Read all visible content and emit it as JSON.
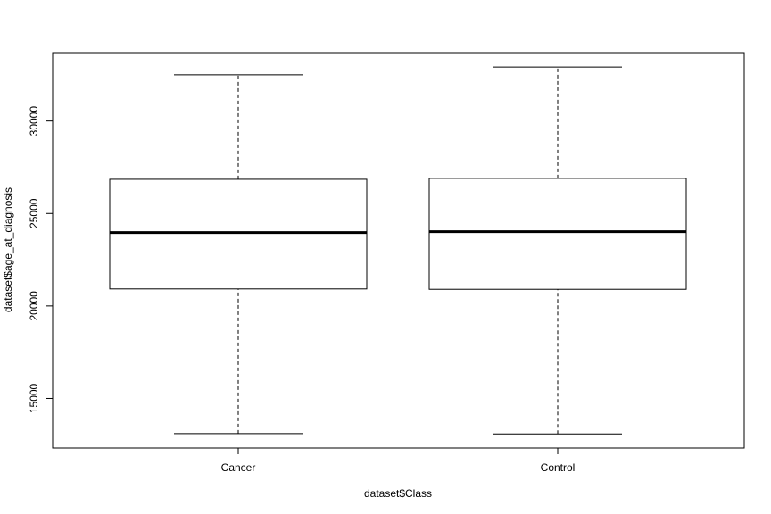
{
  "chart_data": {
    "type": "box",
    "title": "",
    "xlabel": "dataset$Class",
    "ylabel": "dataset$age_at_diagnosis",
    "categories": [
      "Cancer",
      "Control"
    ],
    "boxes": [
      {
        "category": "Cancer",
        "whisker_low": 13100,
        "q1": 20920,
        "median": 23970,
        "q3": 26850,
        "whisker_high": 32500
      },
      {
        "category": "Control",
        "whisker_low": 13080,
        "q1": 20900,
        "median": 24020,
        "q3": 26900,
        "whisker_high": 32920
      }
    ],
    "ylim": [
      12320,
      33700
    ],
    "yticks": [
      15000,
      20000,
      25000,
      30000
    ],
    "grid": false,
    "legend": "none"
  }
}
